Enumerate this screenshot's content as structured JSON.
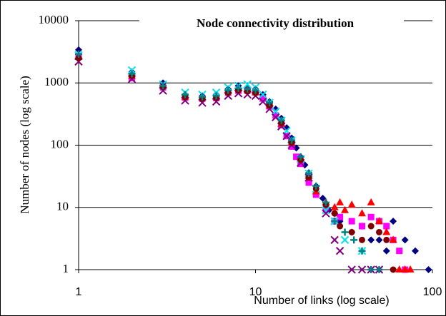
{
  "chart_data": {
    "type": "scatter",
    "title": "Node connectivity distribution",
    "x_label": "Number of links (log scale)",
    "y_label": "Number of nodes (log scale)",
    "xlog": true,
    "ylog": true,
    "grid": true,
    "xlim": [
      1,
      100
    ],
    "ylim": [
      1,
      10000
    ],
    "xticks": [
      1,
      10,
      100
    ],
    "yticks": [
      1,
      10,
      100,
      1000,
      10000
    ],
    "series": [
      {
        "color": "#000080",
        "marker": "diamond",
        "x": [
          1,
          2,
          3,
          4,
          5,
          6,
          7,
          8,
          9,
          10,
          11,
          12,
          13,
          14,
          15,
          16,
          17,
          18,
          19,
          20,
          22,
          24,
          26,
          28,
          30,
          35,
          40,
          45,
          50,
          55,
          60,
          70,
          80,
          95
        ],
        "values": [
          3400,
          1500,
          1000,
          650,
          620,
          650,
          800,
          900,
          850,
          800,
          650,
          500,
          380,
          270,
          190,
          130,
          90,
          65,
          48,
          36,
          22,
          14,
          9,
          8,
          6,
          4,
          5,
          3,
          3,
          2,
          6,
          3,
          2,
          1
        ]
      },
      {
        "color": "#ff00ff",
        "marker": "square",
        "x": [
          1,
          2,
          3,
          4,
          5,
          6,
          7,
          8,
          9,
          10,
          11,
          12,
          13,
          14,
          15,
          16,
          17,
          18,
          20,
          22,
          25,
          28,
          30,
          35,
          40,
          45,
          50,
          55,
          60,
          65,
          70
        ],
        "values": [
          2700,
          1200,
          850,
          580,
          560,
          570,
          700,
          750,
          750,
          720,
          560,
          420,
          300,
          210,
          140,
          95,
          65,
          50,
          25,
          16,
          9,
          6,
          7,
          6,
          5,
          7,
          6,
          5,
          3,
          2,
          1
        ]
      },
      {
        "color": "#ff0000",
        "marker": "triangle",
        "x": [
          1,
          2,
          3,
          4,
          5,
          6,
          7,
          8,
          9,
          10,
          12,
          14,
          16,
          18,
          20,
          22,
          25,
          28,
          30,
          32,
          35,
          40,
          45,
          50,
          55,
          60,
          65,
          70,
          75
        ],
        "values": [
          2600,
          1300,
          900,
          600,
          580,
          600,
          750,
          820,
          780,
          700,
          430,
          220,
          110,
          60,
          32,
          18,
          12,
          10,
          12,
          9,
          11,
          8,
          12,
          6,
          4,
          3,
          1,
          1,
          1
        ]
      },
      {
        "color": "#00e5ee",
        "marker": "x",
        "x": [
          1,
          2,
          3,
          4,
          5,
          6,
          7,
          8,
          9,
          10,
          11,
          12,
          13,
          14,
          15,
          16,
          18,
          20,
          22,
          25,
          28,
          32,
          40,
          50
        ],
        "values": [
          2800,
          1600,
          950,
          700,
          650,
          700,
          850,
          900,
          950,
          850,
          650,
          480,
          350,
          250,
          170,
          120,
          60,
          35,
          20,
          9,
          6,
          3,
          2,
          1
        ]
      },
      {
        "color": "#800080",
        "marker": "x",
        "x": [
          1,
          2,
          3,
          4,
          5,
          6,
          7,
          8,
          9,
          10,
          11,
          12,
          13,
          14,
          15,
          16,
          18,
          20,
          25,
          28,
          30,
          35,
          40,
          45,
          50
        ],
        "values": [
          2200,
          1150,
          750,
          520,
          480,
          500,
          620,
          680,
          650,
          620,
          500,
          380,
          280,
          200,
          140,
          100,
          52,
          30,
          8,
          3,
          2,
          1,
          1,
          1,
          1
        ]
      },
      {
        "color": "#800000",
        "marker": "circle",
        "x": [
          1,
          2,
          3,
          4,
          5,
          6,
          7,
          8,
          9,
          10,
          12,
          14,
          16,
          18,
          20,
          22,
          25,
          28,
          30,
          35,
          40,
          45,
          50,
          55,
          60
        ],
        "values": [
          2500,
          1300,
          870,
          590,
          560,
          580,
          690,
          760,
          730,
          690,
          440,
          230,
          110,
          58,
          30,
          20,
          11,
          8,
          5,
          4,
          3,
          5,
          4,
          3,
          1
        ]
      },
      {
        "color": "#008080",
        "marker": "plus",
        "x": [
          1,
          2,
          3,
          4,
          5,
          6,
          7,
          8,
          9,
          10,
          12,
          14,
          16,
          18,
          20,
          22,
          25,
          28,
          32,
          36,
          40,
          45,
          50
        ],
        "values": [
          2900,
          1400,
          900,
          650,
          600,
          620,
          760,
          820,
          800,
          760,
          480,
          250,
          120,
          65,
          35,
          22,
          12,
          6,
          4,
          3,
          2,
          1,
          1
        ]
      }
    ]
  }
}
